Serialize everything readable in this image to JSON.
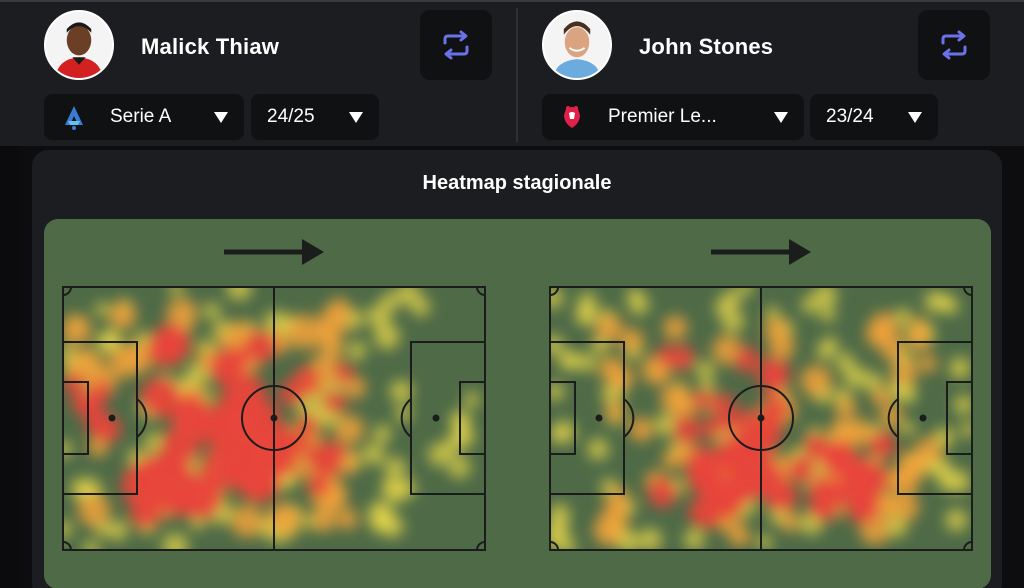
{
  "players": [
    {
      "name": "Malick Thiaw",
      "league": "Serie A",
      "season": "24/25",
      "league_icon": "serie-a-logo-icon",
      "kit_color": "#d32020"
    },
    {
      "name": "John Stones",
      "league": "Premier Le...",
      "season": "23/24",
      "league_icon": "premier-league-logo-icon",
      "kit_color": "#6cabdd"
    }
  ],
  "card": {
    "title": "Heatmap stagionale"
  },
  "colors": {
    "background": "#0d0d0f",
    "topbar": "#1c1d20",
    "button": "#101113",
    "accent_swap": "#6b72e8",
    "pitch": "#4e6a47",
    "heat_low": "#e8d84a",
    "heat_mid": "#f2a23a",
    "heat_high": "#e8453a"
  },
  "icons": {
    "swap": "swap-arrows-icon",
    "caret": "caret-down-icon",
    "direction": "attack-direction-arrow-icon"
  }
}
